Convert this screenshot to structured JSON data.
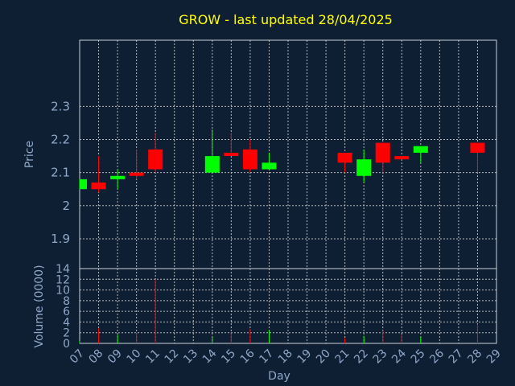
{
  "chart_data": [
    {
      "type": "candlestick",
      "title": "GROW - last updated 28/04/2025",
      "ylabel": "Price",
      "ylim": [
        1.81,
        2.5
      ],
      "yticks": [
        1.9,
        2,
        2.1,
        2.2,
        2.3
      ],
      "ytick_labels": [
        "1.9",
        "2",
        "2.1",
        "2.2",
        "2.3"
      ],
      "xlim": [
        7,
        29
      ],
      "up_color": "#00ff00",
      "down_color": "#ff0000",
      "candles": [
        {
          "day": 7,
          "open": 2.05,
          "high": 2.08,
          "low": 2.05,
          "close": 2.08
        },
        {
          "day": 8,
          "open": 2.07,
          "high": 2.15,
          "low": 2.04,
          "close": 2.05
        },
        {
          "day": 9,
          "open": 2.08,
          "high": 2.11,
          "low": 2.05,
          "close": 2.09
        },
        {
          "day": 10,
          "open": 2.1,
          "high": 2.17,
          "low": 2.08,
          "close": 2.09
        },
        {
          "day": 11,
          "open": 2.17,
          "high": 2.22,
          "low": 2.1,
          "close": 2.11
        },
        {
          "day": 14,
          "open": 2.1,
          "high": 2.23,
          "low": 2.1,
          "close": 2.15
        },
        {
          "day": 15,
          "open": 2.16,
          "high": 2.22,
          "low": 2.15,
          "close": 2.15
        },
        {
          "day": 16,
          "open": 2.17,
          "high": 2.2,
          "low": 2.1,
          "close": 2.11
        },
        {
          "day": 17,
          "open": 2.11,
          "high": 2.16,
          "low": 2.11,
          "close": 2.13
        },
        {
          "day": 21,
          "open": 2.16,
          "high": 2.16,
          "low": 2.1,
          "close": 2.13
        },
        {
          "day": 22,
          "open": 2.09,
          "high": 2.17,
          "low": 2.07,
          "close": 2.14
        },
        {
          "day": 23,
          "open": 2.19,
          "high": 2.19,
          "low": 2.1,
          "close": 2.13
        },
        {
          "day": 24,
          "open": 2.15,
          "high": 2.15,
          "low": 2.14,
          "close": 2.14
        },
        {
          "day": 25,
          "open": 2.16,
          "high": 2.18,
          "low": 2.13,
          "close": 2.18
        },
        {
          "day": 28,
          "open": 2.19,
          "high": 2.19,
          "low": 2.1,
          "close": 2.16
        }
      ]
    },
    {
      "type": "bar",
      "ylabel": "Volume (0000)",
      "xlabel": "Day",
      "ylim": [
        0,
        14
      ],
      "yticks": [
        0,
        2,
        4,
        6,
        8,
        10,
        12,
        14
      ],
      "ytick_labels": [
        "0",
        "2",
        "4",
        "6",
        "8",
        "10",
        "12",
        "14"
      ],
      "xlim": [
        7,
        29
      ],
      "x_tick_labels": [
        "07",
        "08",
        "09",
        "10",
        "11",
        "12",
        "13",
        "14",
        "15",
        "16",
        "17",
        "18",
        "19",
        "20",
        "21",
        "22",
        "23",
        "24",
        "25",
        "26",
        "27",
        "28",
        "29"
      ],
      "bars": [
        {
          "day": 7,
          "value": 0.5,
          "color": "#00ff00"
        },
        {
          "day": 8,
          "value": 2.8,
          "color": "#ff0000"
        },
        {
          "day": 9,
          "value": 1.6,
          "color": "#00ff00"
        },
        {
          "day": 10,
          "value": 2.0,
          "color": "#ff0000"
        },
        {
          "day": 11,
          "value": 12.0,
          "color": "#ff0000"
        },
        {
          "day": 14,
          "value": 1.3,
          "color": "#00ff00"
        },
        {
          "day": 15,
          "value": 1.9,
          "color": "#ff0000"
        },
        {
          "day": 16,
          "value": 2.7,
          "color": "#ff0000"
        },
        {
          "day": 17,
          "value": 2.5,
          "color": "#00ff00"
        },
        {
          "day": 21,
          "value": 1.0,
          "color": "#ff0000"
        },
        {
          "day": 22,
          "value": 1.4,
          "color": "#00ff00"
        },
        {
          "day": 23,
          "value": 2.4,
          "color": "#ff0000"
        },
        {
          "day": 24,
          "value": 1.6,
          "color": "#ff0000"
        },
        {
          "day": 25,
          "value": 1.3,
          "color": "#00ff00"
        },
        {
          "day": 28,
          "value": 3.6,
          "color": "#ff0000"
        }
      ]
    }
  ]
}
